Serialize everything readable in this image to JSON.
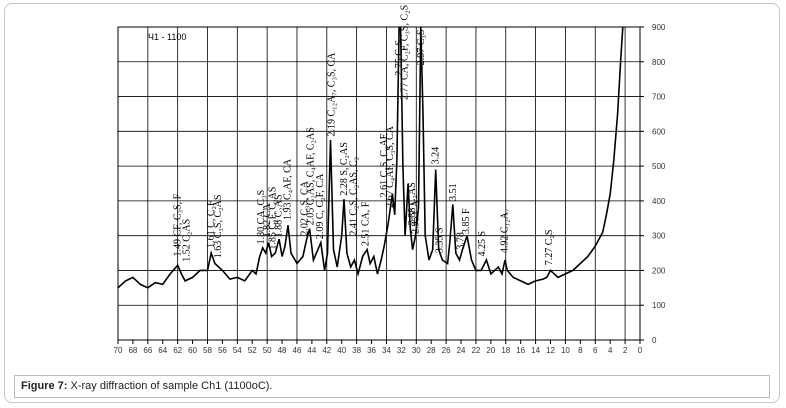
{
  "chart_data": {
    "type": "line",
    "title": "Ч1 - 1100",
    "x": [
      70,
      69,
      68,
      67,
      66,
      65,
      64,
      63,
      62,
      61.5,
      61,
      60,
      59,
      58,
      57.5,
      57,
      56,
      55,
      54,
      53,
      52,
      51.5,
      51,
      50.6,
      50.2,
      49.8,
      49.4,
      48.9,
      48.4,
      48,
      47.6,
      47.2,
      46.8,
      46,
      45.2,
      44.7,
      44.3,
      43.8,
      43.2,
      42.8,
      42.3,
      41.9,
      41.5,
      41.1,
      40.6,
      40,
      39.7,
      39.3,
      38.8,
      38.3,
      37.8,
      37.2,
      36.6,
      36.2,
      35.7,
      35.2,
      34.7,
      34.3,
      33.8,
      33.2,
      32.9,
      32.6,
      32.3,
      32.1,
      31.8,
      31.5,
      31.1,
      30.8,
      30.5,
      30.1,
      29.7,
      29.4,
      29.1,
      28.8,
      28.3,
      27.8,
      27.4,
      27,
      26.5,
      25.8,
      25.5,
      25.1,
      24.7,
      24.2,
      23.8,
      23.2,
      22.6,
      22,
      21.3,
      20.6,
      20,
      19,
      18.5,
      18.1,
      17.8,
      17,
      16,
      15,
      14,
      13,
      12.5,
      12,
      11.5,
      11,
      10,
      9,
      8,
      7,
      6,
      5,
      4.5,
      4,
      3.5,
      3,
      2.6,
      2.3
    ],
    "series": [
      {
        "color": "#000000",
        "values": [
          150,
          170,
          180,
          160,
          150,
          165,
          160,
          190,
          215,
          190,
          170,
          180,
          200,
          200,
          250,
          220,
          200,
          175,
          180,
          170,
          200,
          190,
          240,
          265,
          250,
          280,
          240,
          250,
          290,
          240,
          270,
          330,
          250,
          220,
          240,
          290,
          320,
          230,
          260,
          280,
          200,
          250,
          575,
          260,
          210,
          300,
          405,
          250,
          210,
          230,
          190,
          240,
          260,
          220,
          240,
          190,
          230,
          270,
          330,
          420,
          360,
          520,
          900,
          900,
          500,
          300,
          450,
          320,
          260,
          300,
          380,
          900,
          650,
          300,
          230,
          260,
          490,
          260,
          230,
          220,
          280,
          390,
          250,
          230,
          260,
          300,
          230,
          200,
          200,
          230,
          190,
          210,
          190,
          230,
          200,
          180,
          170,
          160,
          170,
          175,
          180,
          200,
          190,
          180,
          190,
          200,
          220,
          240,
          270,
          310,
          360,
          420,
          520,
          650,
          800,
          900
        ]
      }
    ],
    "xlim": [
      70,
      0
    ],
    "ylim": [
      0,
      900
    ],
    "xticks": [
      70,
      68,
      66,
      64,
      62,
      60,
      58,
      56,
      54,
      52,
      50,
      48,
      46,
      44,
      42,
      40,
      38,
      36,
      34,
      32,
      30,
      28,
      26,
      24,
      22,
      20,
      18,
      16,
      14,
      12,
      10,
      8,
      6,
      4,
      2,
      0
    ],
    "yticks": [
      0,
      100,
      200,
      300,
      400,
      500,
      600,
      700,
      800,
      900
    ],
    "xgrid": [
      70,
      66,
      62,
      58,
      54,
      50,
      46,
      42,
      38,
      34,
      30,
      26,
      22,
      18,
      14,
      10,
      6,
      2
    ],
    "annotations": [
      {
        "text": "1.49 CF, C₃S, F",
        "x": 62,
        "y": 240
      },
      {
        "text": "1.52 C₂AS",
        "x": 60.8,
        "y": 225
      },
      {
        "text": "1.61 C, C₂F",
        "x": 57.5,
        "y": 265
      },
      {
        "text": "1.63 C₃S, C₂AS",
        "x": 56.6,
        "y": 235
      },
      {
        "text": "1.80 CA, C₃S",
        "x": 50.8,
        "y": 275
      },
      {
        "text": "1.82 CA",
        "x": 50,
        "y": 295
      },
      {
        "text": "1.85 C₂F, C₂AS",
        "x": 49.3,
        "y": 260
      },
      {
        "text": "1.88 C₂AS",
        "x": 48.5,
        "y": 295
      },
      {
        "text": "1.93 C₄AF, CA",
        "x": 47.3,
        "y": 345
      },
      {
        "text": "2.02 C₃S, CA",
        "x": 45,
        "y": 300
      },
      {
        "text": "2.05 C₂AS, C₄AF, C₂AS",
        "x": 44.2,
        "y": 330
      },
      {
        "text": "2.09 C, C₂F, CA",
        "x": 42.9,
        "y": 290
      },
      {
        "text": "2.19 C₁₂A₇, C₃S, CA",
        "x": 41.4,
        "y": 585
      },
      {
        "text": "2.28 S, C₂AS",
        "x": 39.7,
        "y": 415
      },
      {
        "text": "2.41 C₂S, C₂AS, C₂",
        "x": 38.4,
        "y": 300
      },
      {
        "text": "2.51 CA, F",
        "x": 36.8,
        "y": 270
      },
      {
        "text": "2.61 C₂S, C₄AF",
        "x": 34.3,
        "y": 410
      },
      {
        "text": "2.67 C₄AF, C₃S, CA",
        "x": 33.5,
        "y": 380
      },
      {
        "text": "2.75 C₃S",
        "x": 32.3,
        "y": 760
      },
      {
        "text": "2.77 CA, C₂F, C₃S, C₂S",
        "x": 31.6,
        "y": 690
      },
      {
        "text": "2.88 C₂AS",
        "x": 30.6,
        "y": 330
      },
      {
        "text": "2.95 CA",
        "x": 30.1,
        "y": 305
      },
      {
        "text": "2.97 C₃S",
        "x": 29.4,
        "y": 790
      },
      {
        "text": "3.24",
        "x": 27.4,
        "y": 505
      },
      {
        "text": "3.35 S",
        "x": 26.9,
        "y": 250
      },
      {
        "text": "3.51",
        "x": 25.1,
        "y": 400
      },
      {
        "text": "3.78",
        "x": 24.1,
        "y": 260
      },
      {
        "text": "3.85 F",
        "x": 23.3,
        "y": 305
      },
      {
        "text": "4.25 S",
        "x": 21.2,
        "y": 240
      },
      {
        "text": "4.92 C₁₂A₇",
        "x": 18.2,
        "y": 250
      },
      {
        "text": "7.27 C₂S",
        "x": 12.2,
        "y": 215
      }
    ]
  },
  "caption": {
    "label": "Figure 7:",
    "text": "X-ray diffraction of sample Ch1 (1100oC)."
  }
}
